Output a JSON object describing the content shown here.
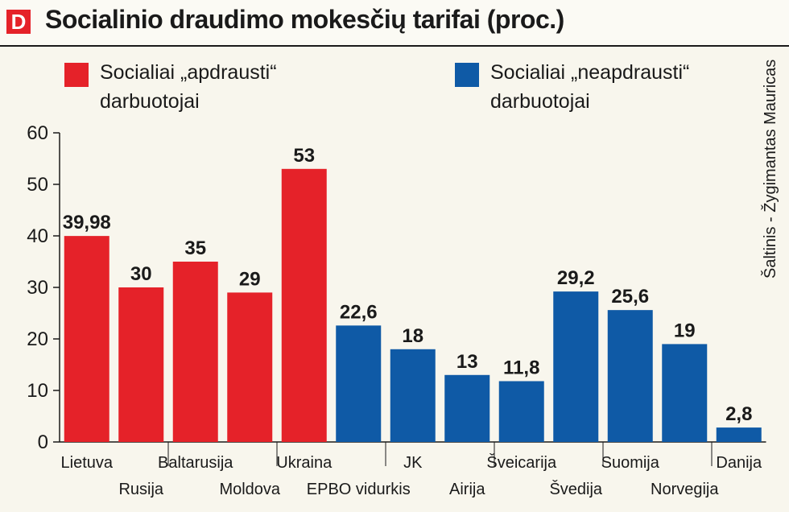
{
  "logo": {
    "letter": "D"
  },
  "title": "Socialinio draudimo mokesčių tarifai (proc.)",
  "source": "Šaltinis - Žygimantas Mauricas",
  "legend": [
    {
      "line1": "Socialiai „apdrausti“",
      "line2": "darbuotojai",
      "color": "#e52229"
    },
    {
      "line1": "Socialiai „neapdrausti“",
      "line2": "darbuotojai",
      "color": "#0f5aa6"
    }
  ],
  "chart_data": {
    "type": "bar",
    "title": "Socialinio draudimo mokesčių tarifai (proc.)",
    "xlabel": "",
    "ylabel": "",
    "ylim": [
      0,
      60
    ],
    "yticks": [
      0,
      10,
      20,
      30,
      40,
      50,
      60
    ],
    "grid": false,
    "legend_position": "top",
    "categories": [
      "Lietuva",
      "Rusija",
      "Baltarusija",
      "Moldova",
      "Ukraina",
      "EPBO vidurkis",
      "JK",
      "Airija",
      "Šveicarija",
      "Švedija",
      "Suomija",
      "Norvegija",
      "Danija"
    ],
    "values": [
      39.98,
      30,
      35,
      29,
      53,
      22.6,
      18,
      13,
      11.8,
      29.2,
      25.6,
      19,
      2.8
    ],
    "value_labels": [
      "39,98",
      "30",
      "35",
      "29",
      "53",
      "22,6",
      "18",
      "13",
      "11,8",
      "29,2",
      "25,6",
      "19",
      "2,8"
    ],
    "groups": [
      0,
      0,
      0,
      0,
      0,
      1,
      1,
      1,
      1,
      1,
      1,
      1,
      1
    ],
    "series": [
      {
        "name": "Socialiai „apdrausti“ darbuotojai",
        "color": "#e52229"
      },
      {
        "name": "Socialiai „neapdrausti“ darbuotojai",
        "color": "#0f5aa6"
      }
    ]
  }
}
